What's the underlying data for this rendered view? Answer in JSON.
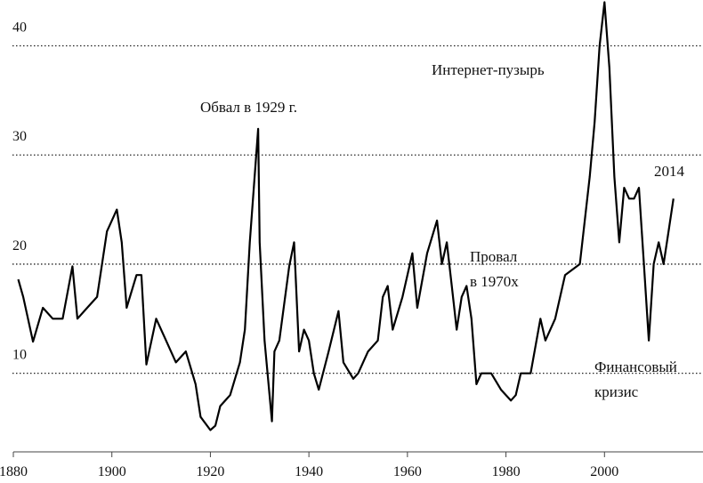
{
  "chart_data": {
    "type": "line",
    "x": [
      1881,
      1882,
      1884,
      1886,
      1888,
      1890,
      1892,
      1893,
      1895,
      1897,
      1899,
      1901,
      1902,
      1903,
      1905,
      1906,
      1907,
      1909,
      1911,
      1913,
      1915,
      1917,
      1918,
      1920,
      1921,
      1922,
      1924,
      1926,
      1927,
      1928,
      1929.7,
      1930,
      1931,
      1932.5,
      1933,
      1934,
      1936,
      1937,
      1938,
      1939,
      1940,
      1941,
      1942,
      1944,
      1946,
      1947,
      1949,
      1950,
      1952,
      1954,
      1955,
      1956,
      1957,
      1959,
      1961,
      1962,
      1964,
      1966,
      1967,
      1968,
      1969,
      1970,
      1971,
      1972,
      1973,
      1974,
      1975,
      1977,
      1979,
      1981,
      1982,
      1983,
      1985,
      1987,
      1988,
      1990,
      1992,
      1995,
      1997,
      1998,
      1999,
      2000,
      2001,
      2002,
      2003,
      2004,
      2005,
      2006,
      2007,
      2008,
      2009,
      2010,
      2011,
      2012,
      2013,
      2014
    ],
    "values": [
      18.6,
      17,
      12.9,
      16,
      15,
      15,
      19.8,
      15,
      16,
      17,
      23,
      25,
      22,
      16,
      19,
      19,
      10.8,
      15,
      13,
      11,
      12,
      9,
      6,
      4.8,
      5.2,
      7,
      8,
      11,
      14,
      22,
      32.4,
      22,
      13,
      5.6,
      12,
      13,
      19.8,
      22,
      12,
      14,
      13,
      10,
      8.5,
      12,
      15.7,
      11,
      9.5,
      10,
      12,
      13,
      17,
      18,
      14,
      17,
      21,
      16,
      21,
      24,
      20,
      22,
      18,
      14,
      17,
      18,
      15,
      9,
      10,
      10,
      8.5,
      7.5,
      8,
      10,
      10,
      15,
      13,
      15,
      19,
      20,
      28,
      33,
      40,
      44,
      38,
      28,
      22,
      27,
      26,
      26,
      27,
      20,
      13,
      20,
      22,
      20,
      23,
      26
    ],
    "color": "#000000",
    "xlim": [
      1880,
      2020
    ],
    "ylim": [
      2.8,
      44.2
    ],
    "xticks": [
      1880,
      1900,
      1920,
      1940,
      1960,
      1980,
      2000
    ],
    "yticks": [
      10,
      20,
      30,
      40
    ],
    "grid": true,
    "annotations": [
      "Обвал в 1929 г.",
      "Интернет-пузырь",
      "2014",
      "Провал",
      "в 1970х",
      "Финансовый",
      "кризис"
    ]
  }
}
